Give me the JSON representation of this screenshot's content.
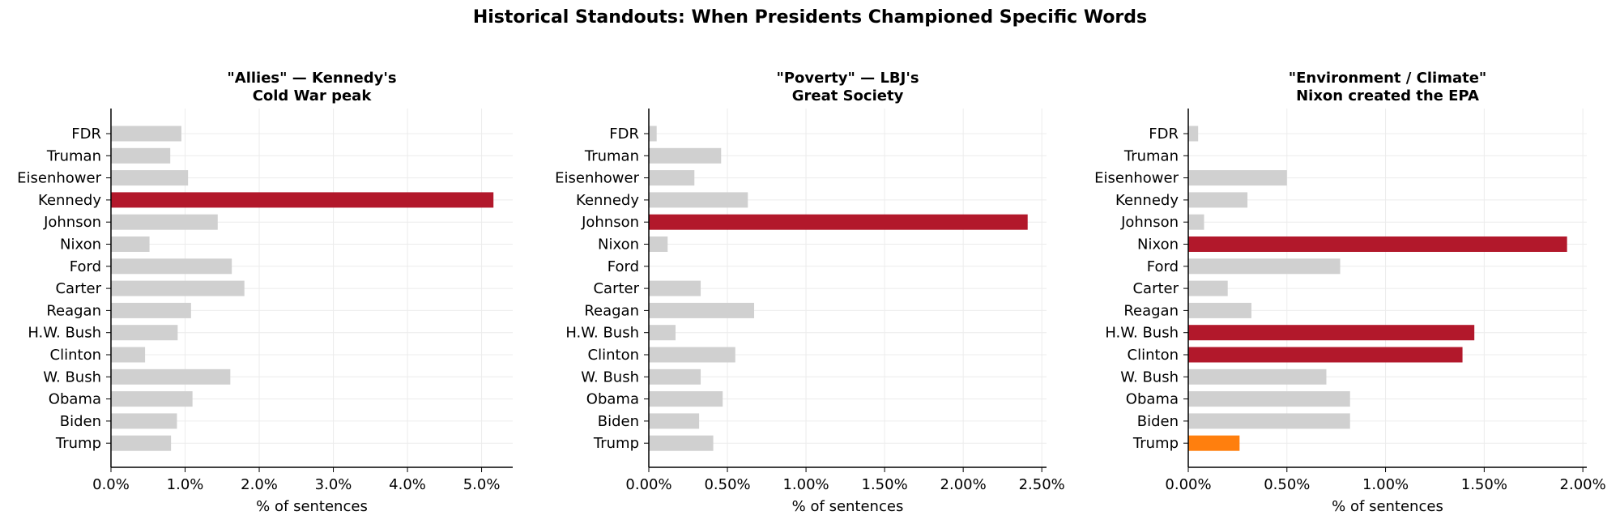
{
  "suptitle": "Historical Standouts: When Presidents Championed Specific Words",
  "colors": {
    "default": "#d0d0d0",
    "highlight": "#b2182b",
    "accent": "#ff7f0e",
    "grid": "#ececec",
    "axis": "#000000"
  },
  "chart_data": [
    {
      "type": "bar",
      "orientation": "horizontal",
      "title_lines": [
        "\"Allies\" — Kennedy's",
        "Cold War peak"
      ],
      "xlabel": "% of sentences",
      "xlim": [
        0,
        5.42
      ],
      "xticks": [
        0,
        1,
        2,
        3,
        4,
        5
      ],
      "xtick_labels": [
        "0.0%",
        "1.0%",
        "2.0%",
        "3.0%",
        "4.0%",
        "5.0%"
      ],
      "categories": [
        "FDR",
        "Truman",
        "Eisenhower",
        "Kennedy",
        "Johnson",
        "Nixon",
        "Ford",
        "Carter",
        "Reagan",
        "H.W. Bush",
        "Clinton",
        "W. Bush",
        "Obama",
        "Biden",
        "Trump"
      ],
      "values": [
        0.95,
        0.8,
        1.04,
        5.16,
        1.44,
        0.52,
        1.63,
        1.8,
        1.08,
        0.9,
        0.46,
        1.61,
        1.1,
        0.89,
        0.81
      ],
      "highlight": [
        "Kennedy"
      ],
      "accent": []
    },
    {
      "type": "bar",
      "orientation": "horizontal",
      "title_lines": [
        "\"Poverty\" — LBJ's",
        "Great Society"
      ],
      "xlabel": "% of sentences",
      "xlim": [
        0,
        2.53
      ],
      "xticks": [
        0,
        0.5,
        1.0,
        1.5,
        2.0,
        2.5
      ],
      "xtick_labels": [
        "0.00%",
        "0.50%",
        "1.00%",
        "1.50%",
        "2.00%",
        "2.50%"
      ],
      "categories": [
        "FDR",
        "Truman",
        "Eisenhower",
        "Kennedy",
        "Johnson",
        "Nixon",
        "Ford",
        "Carter",
        "Reagan",
        "H.W. Bush",
        "Clinton",
        "W. Bush",
        "Obama",
        "Biden",
        "Trump"
      ],
      "values": [
        0.05,
        0.46,
        0.29,
        0.63,
        2.41,
        0.12,
        0.0,
        0.33,
        0.67,
        0.17,
        0.55,
        0.33,
        0.47,
        0.32,
        0.41
      ],
      "highlight": [
        "Johnson"
      ],
      "accent": []
    },
    {
      "type": "bar",
      "orientation": "horizontal",
      "title_lines": [
        "\"Environment / Climate\"",
        "Nixon created the EPA"
      ],
      "xlabel": "% of sentences",
      "xlim": [
        0,
        2.02
      ],
      "xticks": [
        0,
        0.5,
        1.0,
        1.5,
        2.0
      ],
      "xtick_labels": [
        "0.00%",
        "0.50%",
        "1.00%",
        "1.50%",
        "2.00%"
      ],
      "categories": [
        "FDR",
        "Truman",
        "Eisenhower",
        "Kennedy",
        "Johnson",
        "Nixon",
        "Ford",
        "Carter",
        "Reagan",
        "H.W. Bush",
        "Clinton",
        "W. Bush",
        "Obama",
        "Biden",
        "Trump"
      ],
      "values": [
        0.05,
        0.0,
        0.5,
        0.3,
        0.08,
        1.92,
        0.77,
        0.2,
        0.32,
        1.45,
        1.39,
        0.7,
        0.82,
        0.82,
        0.26
      ],
      "highlight": [
        "Nixon",
        "H.W. Bush",
        "Clinton"
      ],
      "accent": [
        "Trump"
      ]
    }
  ]
}
